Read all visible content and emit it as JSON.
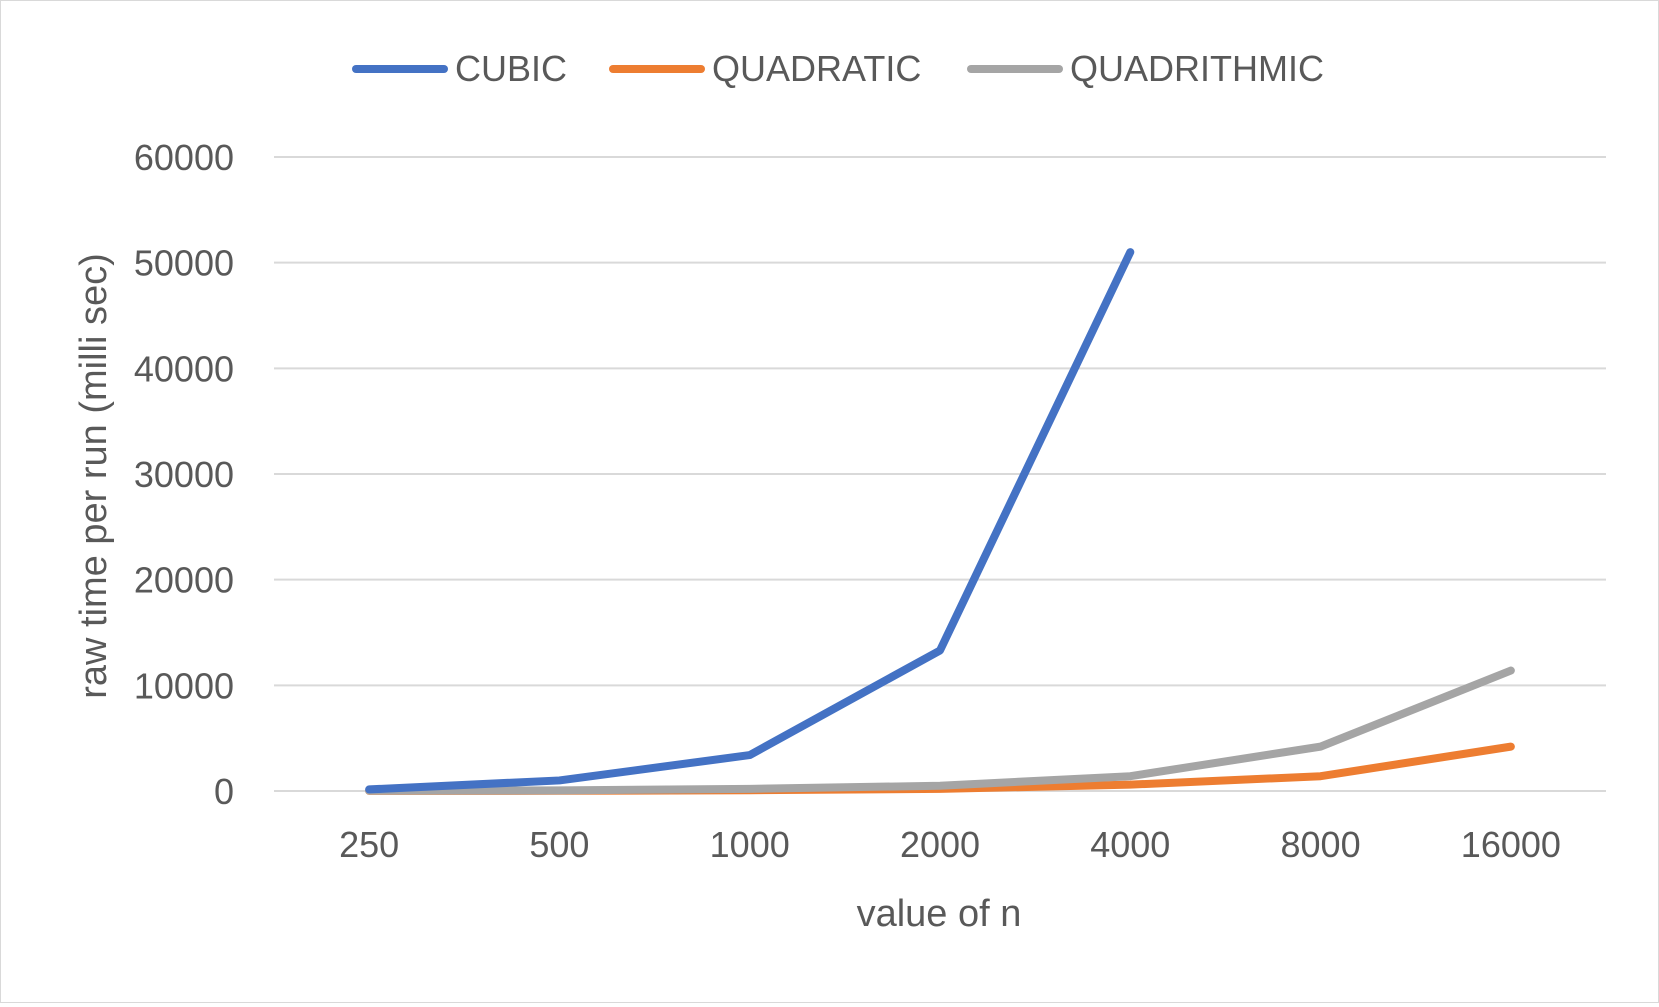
{
  "chart_data": {
    "type": "line",
    "title": "",
    "xlabel": "value of n",
    "ylabel": "raw time per run (milli sec)",
    "categories": [
      "250",
      "500",
      "1000",
      "2000",
      "4000",
      "8000",
      "16000"
    ],
    "ylim": [
      0,
      60000
    ],
    "yticks": [
      0,
      10000,
      20000,
      30000,
      40000,
      50000,
      60000
    ],
    "grid": true,
    "legend_position": "top",
    "series": [
      {
        "name": "CUBIC",
        "color": "#4472c4",
        "values": [
          150,
          1000,
          3400,
          13300,
          51000,
          null,
          null
        ]
      },
      {
        "name": "QUADRATIC",
        "color": "#ed7d31",
        "values": [
          10,
          20,
          70,
          200,
          600,
          1400,
          4200
        ]
      },
      {
        "name": "QUADRITHMIC",
        "color": "#a5a5a5",
        "values": [
          30,
          60,
          200,
          500,
          1400,
          4200,
          11400
        ]
      }
    ]
  }
}
